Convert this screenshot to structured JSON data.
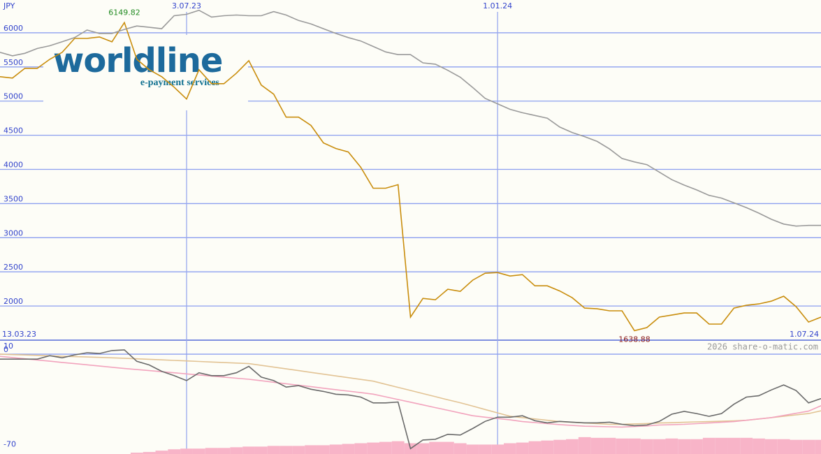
{
  "logo": {
    "name": "worldline",
    "tagline": "e-payment services"
  },
  "watermark": "2026 share-o-matic.com",
  "chart_data": [
    {
      "type": "line",
      "y_label": "JPY",
      "categories": [
        "13.03.23",
        null,
        null,
        null,
        null,
        null,
        null,
        null,
        null,
        null,
        null,
        null,
        null,
        null,
        null,
        "3.07.23",
        null,
        null,
        null,
        null,
        null,
        null,
        null,
        null,
        null,
        null,
        null,
        null,
        null,
        null,
        null,
        null,
        null,
        null,
        null,
        null,
        null,
        null,
        null,
        null,
        "1.01.24",
        null,
        null,
        null,
        null,
        null,
        null,
        null,
        null,
        null,
        null,
        null,
        null,
        null,
        null,
        null,
        null,
        null,
        null,
        null,
        null,
        null,
        null,
        null,
        null,
        null,
        "1.07.24"
      ],
      "series": [
        {
          "color": "#c98d0c",
          "values": [
            5357,
            5337,
            5480,
            5480,
            5612,
            5714,
            5918,
            5918,
            5939,
            5867,
            6149.82,
            5612,
            5459,
            5357,
            5204,
            5030,
            5459,
            5255,
            5255,
            5408,
            5592,
            5235,
            5102,
            4765,
            4765,
            4643,
            4388,
            4306,
            4255,
            4031,
            3724,
            3724,
            3776,
            1837,
            2112,
            2091,
            2245,
            2214,
            2378,
            2480,
            2490,
            2439,
            2459,
            2296,
            2296,
            2220,
            2122,
            1969,
            1959,
            1929,
            1929,
            1638.88,
            1684,
            1837,
            1867,
            1898,
            1898,
            1735,
            1735,
            1969,
            2010,
            2031,
            2071,
            2143,
            1990,
            1765,
            1837
          ]
        },
        {
          "color": "#9a9a9a",
          "values": [
            5714,
            5663,
            5700,
            5770,
            5810,
            5870,
            5930,
            6040,
            5990,
            5990,
            6050,
            6100,
            6080,
            6060,
            6250,
            6270,
            6330,
            6230,
            6250,
            6260,
            6250,
            6250,
            6310,
            6260,
            6180,
            6130,
            6060,
            5990,
            5930,
            5880,
            5800,
            5720,
            5680,
            5680,
            5560,
            5540,
            5450,
            5350,
            5200,
            5040,
            4960,
            4880,
            4830,
            4790,
            4750,
            4620,
            4540,
            4480,
            4410,
            4300,
            4160,
            4110,
            4070,
            3960,
            3850,
            3770,
            3700,
            3620,
            3580,
            3510,
            3440,
            3360,
            3270,
            3200,
            3170,
            3180,
            3180
          ]
        }
      ],
      "ylim": [
        1500,
        6480
      ],
      "yticks": [
        2000,
        2500,
        3000,
        3500,
        4000,
        4500,
        5000,
        5500,
        6000
      ],
      "grid": true,
      "high_label_color": "#228b22",
      "low_label_color": "#8b1a1a"
    },
    {
      "type": "line",
      "series": [
        {
          "type": "bar",
          "color": "#f8b4c8",
          "values": [
            null,
            null,
            null,
            null,
            null,
            null,
            null,
            null,
            null,
            null,
            null,
            -73,
            -72.5,
            -71.5,
            -70.5,
            -70,
            -70,
            -69.5,
            -69.5,
            -69,
            -68.5,
            -68.5,
            -68,
            -68,
            -68,
            -67.5,
            -67.5,
            -67,
            -66.5,
            -66,
            -65.5,
            -65,
            -64.5,
            -66,
            -66,
            -65,
            -65,
            -66,
            -67,
            -67,
            -67,
            -66,
            -65.5,
            -64.5,
            -64,
            -63.5,
            -63,
            -61.5,
            -62,
            -62,
            -62.5,
            -62.5,
            -63,
            -63,
            -62.5,
            -63,
            -63,
            -62,
            -62,
            -62,
            -62,
            -62.5,
            -63,
            -63,
            -63.5,
            -63.5,
            -63.5
          ]
        },
        {
          "color": "#e2c394",
          "values": [
            0,
            -0.3,
            -0.6,
            -0.9,
            -1.2,
            -1.5,
            -1.8,
            -2.1,
            -2.4,
            -2.7,
            -3,
            -3.4,
            -3.8,
            -4.2,
            -4.6,
            -5,
            -5.4,
            -5.8,
            -6.2,
            -6.6,
            -7,
            -8.3,
            -9.6,
            -10.9,
            -12.2,
            -13.5,
            -14.8,
            -16.1,
            -17.4,
            -18.7,
            -20,
            -22.3,
            -24.6,
            -26.9,
            -29.2,
            -31.5,
            -33.8,
            -36,
            -38.5,
            -41,
            -43.5,
            -46,
            -47,
            -48,
            -49,
            -50,
            -50.5,
            -51,
            -51.5,
            -52,
            -52,
            -51.7,
            -51.4,
            -51,
            -50.8,
            -50.5,
            -50.2,
            -50,
            -49.7,
            -49.4,
            -49,
            -48,
            -47,
            -46,
            -45,
            -44,
            -42
          ]
        },
        {
          "color": "#f2a3bd",
          "values": [
            -1.6,
            -2.5,
            -3.4,
            -4.3,
            -5.2,
            -6.1,
            -7,
            -7.9,
            -8.8,
            -9.7,
            -10.6,
            -11.4,
            -12.2,
            -13,
            -13.8,
            -14.6,
            -15.4,
            -16.2,
            -17,
            -17.8,
            -18.6,
            -19.7,
            -20.8,
            -21.9,
            -23,
            -24.1,
            -25.2,
            -26.3,
            -27.4,
            -28.5,
            -29.6,
            -31.6,
            -33.6,
            -35.6,
            -37.6,
            -39.6,
            -41.6,
            -43.6,
            -45.6,
            -46.7,
            -47.7,
            -48.7,
            -50,
            -50.7,
            -51.5,
            -52.2,
            -52.8,
            -53.4,
            -53.6,
            -53.8,
            -54,
            -53.6,
            -53.2,
            -52.5,
            -52.3,
            -52,
            -51.5,
            -51,
            -50.5,
            -50,
            -49,
            -48,
            -47,
            -45.4,
            -43.8,
            -42.2,
            -38.2
          ]
        },
        {
          "color": "#6a6a6a",
          "values": [
            -3.7,
            -3.7,
            -3.7,
            -3.7,
            -1.1,
            -2.7,
            -0.5,
            1.1,
            0.5,
            2.7,
            3.2,
            -5.3,
            -8,
            -12.7,
            -15.9,
            -19.6,
            -13.8,
            -15.9,
            -15.9,
            -13.8,
            -9,
            -17,
            -19.6,
            -24.4,
            -23.3,
            -26,
            -27.6,
            -29.7,
            -30.2,
            -31.8,
            -36.1,
            -36.1,
            -35.5,
            -70,
            -63.6,
            -63.1,
            -59.4,
            -59.9,
            -55.1,
            -49.8,
            -46.7,
            -46.7,
            -45.6,
            -49.3,
            -50.9,
            -49.8,
            -50.4,
            -50.9,
            -50.9,
            -50.4,
            -52,
            -53,
            -52.5,
            -49.8,
            -44.5,
            -42.4,
            -44,
            -46.1,
            -44,
            -37.1,
            -31.8,
            -30.8,
            -26.5,
            -22.8,
            -27,
            -36.1,
            -32.9
          ]
        }
      ],
      "ylim": [
        -74,
        10.4
      ],
      "yticks": [
        10,
        0,
        -70
      ],
      "grid": false
    }
  ]
}
